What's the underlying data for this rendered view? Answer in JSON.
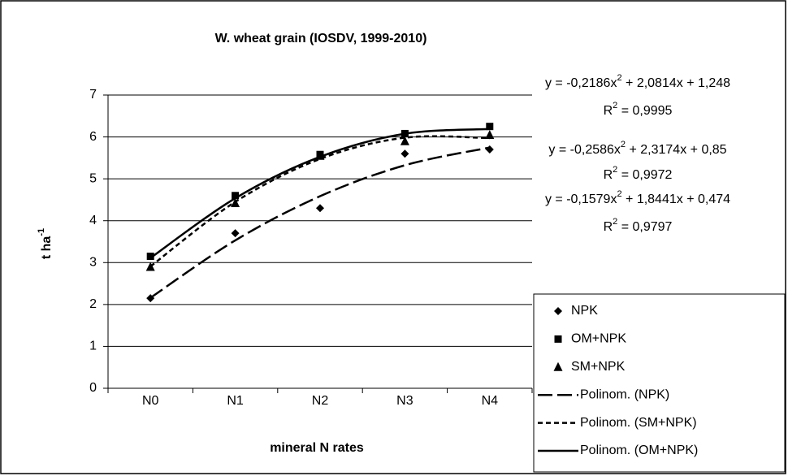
{
  "chart_data": {
    "type": "scatter",
    "title": "W. wheat grain (IOSDV, 1999-2010)",
    "xlabel": "mineral N rates",
    "ylabel": "t ha",
    "ylabel_sup": "-1",
    "categories": [
      "N0",
      "N1",
      "N2",
      "N3",
      "N4"
    ],
    "ylim": [
      0,
      7
    ],
    "yticks": [
      0,
      1,
      2,
      3,
      4,
      5,
      6,
      7
    ],
    "grid": true,
    "series": [
      {
        "name": "NPK",
        "marker": "diamond",
        "color": "#000000",
        "values": [
          2.15,
          3.7,
          4.3,
          5.6,
          5.7
        ]
      },
      {
        "name": "OM+NPK",
        "marker": "square",
        "color": "#000000",
        "values": [
          3.15,
          4.6,
          5.58,
          6.08,
          6.25
        ]
      },
      {
        "name": "SM+NPK",
        "marker": "triangle",
        "color": "#000000",
        "values": [
          2.9,
          4.42,
          5.55,
          5.9,
          6.05
        ]
      }
    ],
    "trendlines": [
      {
        "name": "Polinom. (NPK)",
        "dash": "long",
        "color": "#000000",
        "values": [
          2.16,
          3.531,
          4.585,
          5.324,
          5.747
        ]
      },
      {
        "name": "Polinom. (SM+NPK)",
        "dash": "short",
        "color": "#000000",
        "values": [
          2.909,
          4.45,
          5.475,
          5.982,
          5.972
        ]
      },
      {
        "name": "Polinom. (OM+NPK)",
        "dash": "solid",
        "color": "#000000",
        "values": [
          3.111,
          4.536,
          5.525,
          6.076,
          6.19
        ]
      }
    ],
    "annotations": [
      {
        "eq_a": "y = -0,2186x",
        "eq_sup": "2",
        "eq_b": " + 2,0814x + 1,248",
        "r2_a": "R",
        "r2_sup": "2",
        "r2_b": " = 0,9995"
      },
      {
        "eq_a": "y = -0,2586x",
        "eq_sup": "2",
        "eq_b": " + 2,3174x + 0,85",
        "r2_a": "R",
        "r2_sup": "2",
        "r2_b": " = 0,9972"
      },
      {
        "eq_a": "y = -0,1579x",
        "eq_sup": "2",
        "eq_b": " + 1,8441x + 0,474",
        "r2_a": "R",
        "r2_sup": "2",
        "r2_b": " = 0,9797"
      }
    ],
    "legend": "lower right"
  }
}
